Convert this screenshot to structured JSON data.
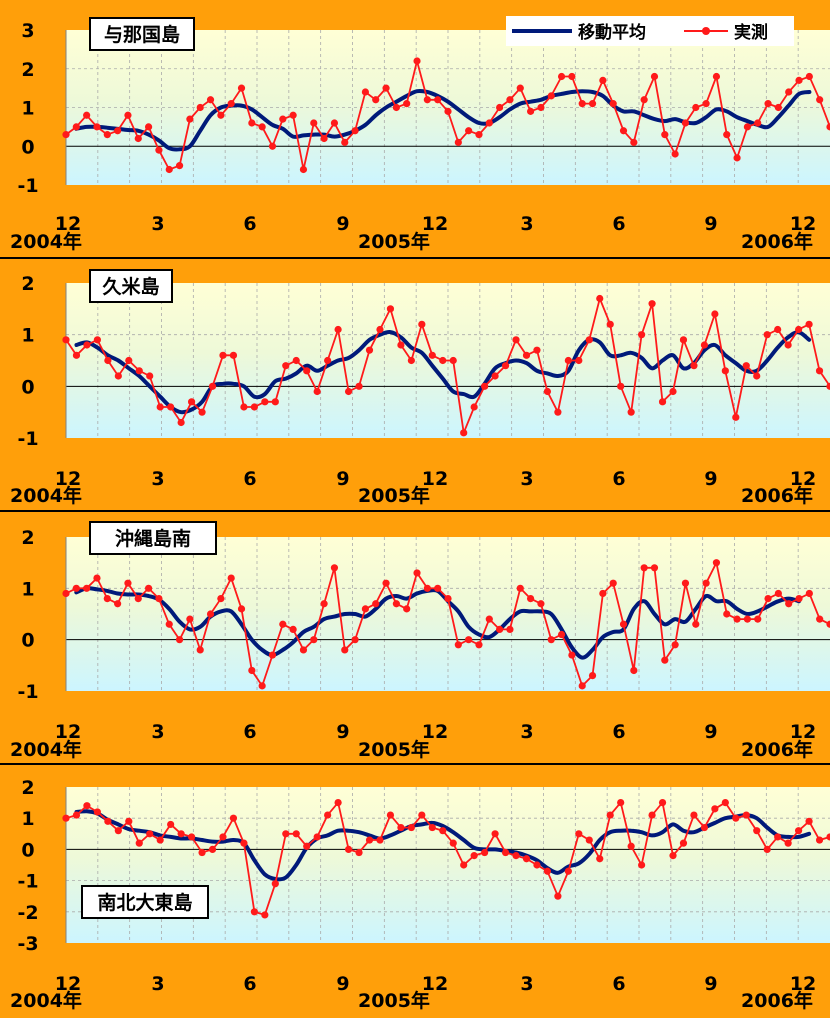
{
  "legend": {
    "ma_label": "移動平均",
    "obs_label": "実測",
    "ma_color": "#001a7a",
    "obs_color": "#ff1a1a"
  },
  "chart_data": [
    {
      "type": "line",
      "title": "与那国島",
      "ylim": [
        -1,
        3
      ],
      "yticks": [
        -1,
        0,
        1,
        2,
        3
      ],
      "x_tick_labels": [
        "12",
        "3",
        "6",
        "9",
        "12",
        "3",
        "6",
        "9",
        "12"
      ],
      "year_labels": [
        "2004年",
        "2005年",
        "2006年"
      ],
      "series": [
        {
          "name": "実測",
          "values": [
            0.3,
            0.5,
            0.8,
            0.5,
            0.3,
            0.4,
            0.8,
            0.2,
            0.5,
            -0.1,
            -0.6,
            -0.5,
            0.7,
            1.0,
            1.2,
            0.8,
            1.1,
            1.5,
            0.6,
            0.5,
            0.0,
            0.7,
            0.8,
            -0.6,
            0.6,
            0.2,
            0.6,
            0.1,
            0.4,
            1.4,
            1.2,
            1.5,
            1.0,
            1.1,
            2.2,
            1.2,
            1.2,
            0.9,
            0.1,
            0.4,
            0.3,
            0.6,
            1.0,
            1.2,
            1.5,
            0.9,
            1.0,
            1.3,
            1.8,
            1.8,
            1.1,
            1.1,
            1.7,
            1.1,
            0.4,
            0.1,
            1.2,
            1.8,
            0.3,
            -0.2,
            0.6,
            1.0,
            1.1,
            1.8,
            0.3,
            -0.3,
            0.5,
            0.6,
            1.1,
            1.0,
            1.4,
            1.7,
            1.8,
            1.2,
            0.5
          ]
        },
        {
          "name": "移動平均",
          "values": [
            0.45,
            0.5,
            0.5,
            0.48,
            0.45,
            0.42,
            0.4,
            0.3,
            0.15,
            -0.05,
            -0.08,
            0.0,
            0.4,
            0.8,
            1.0,
            1.05,
            1.05,
            0.95,
            0.75,
            0.55,
            0.45,
            0.25,
            0.28,
            0.3,
            0.3,
            0.25,
            0.3,
            0.4,
            0.55,
            0.8,
            1.0,
            1.15,
            1.3,
            1.42,
            1.4,
            1.3,
            1.15,
            0.95,
            0.75,
            0.6,
            0.6,
            0.75,
            0.95,
            1.1,
            1.15,
            1.2,
            1.3,
            1.35,
            1.4,
            1.42,
            1.4,
            1.3,
            1.05,
            0.9,
            0.9,
            0.8,
            0.7,
            0.65,
            0.7,
            0.62,
            0.6,
            0.75,
            0.95,
            0.9,
            0.75,
            0.65,
            0.55,
            0.5,
            0.75,
            1.05,
            1.35,
            1.4
          ]
        }
      ]
    },
    {
      "type": "line",
      "title": "久米島",
      "ylim": [
        -1,
        2
      ],
      "yticks": [
        -1,
        0,
        1,
        2
      ],
      "x_tick_labels": [
        "12",
        "3",
        "6",
        "9",
        "12",
        "3",
        "6",
        "9",
        "12"
      ],
      "year_labels": [
        "2004年",
        "2005年",
        "2006年"
      ],
      "series": [
        {
          "name": "実測",
          "values": [
            0.9,
            0.6,
            0.8,
            0.9,
            0.5,
            0.2,
            0.5,
            0.3,
            0.2,
            -0.4,
            -0.4,
            -0.7,
            -0.3,
            -0.5,
            0.0,
            0.6,
            0.6,
            -0.4,
            -0.4,
            -0.3,
            -0.3,
            0.4,
            0.5,
            0.3,
            -0.1,
            0.5,
            1.1,
            -0.1,
            0.0,
            0.7,
            1.1,
            1.5,
            0.8,
            0.5,
            1.2,
            0.6,
            0.5,
            0.5,
            -0.9,
            -0.4,
            0.0,
            0.2,
            0.4,
            0.9,
            0.6,
            0.7,
            -0.1,
            -0.5,
            0.5,
            0.5,
            0.9,
            1.7,
            1.2,
            0.0,
            -0.5,
            1.0,
            1.6,
            -0.3,
            -0.1,
            0.9,
            0.4,
            0.8,
            1.4,
            0.3,
            -0.6,
            0.4,
            0.2,
            1.0,
            1.1,
            0.8,
            1.1,
            1.2,
            0.3,
            0.0
          ]
        },
        {
          "name": "移動平均",
          "values": [
            0.8,
            0.85,
            0.75,
            0.6,
            0.5,
            0.35,
            0.2,
            0.0,
            -0.2,
            -0.4,
            -0.5,
            -0.45,
            -0.3,
            0.0,
            0.05,
            0.05,
            0.0,
            -0.2,
            -0.15,
            0.1,
            0.15,
            0.25,
            0.4,
            0.3,
            0.4,
            0.5,
            0.55,
            0.7,
            0.9,
            1.0,
            1.05,
            0.95,
            0.75,
            0.65,
            0.4,
            0.15,
            -0.1,
            -0.15,
            -0.2,
            0.05,
            0.35,
            0.45,
            0.5,
            0.45,
            0.3,
            0.25,
            0.2,
            0.3,
            0.7,
            0.9,
            0.85,
            0.6,
            0.6,
            0.65,
            0.55,
            0.35,
            0.5,
            0.6,
            0.35,
            0.45,
            0.7,
            0.8,
            0.6,
            0.45,
            0.3,
            0.3,
            0.5,
            0.75,
            0.95,
            1.05,
            0.9
          ]
        }
      ]
    },
    {
      "type": "line",
      "title": "沖縄島南",
      "ylim": [
        -1,
        2
      ],
      "yticks": [
        -1,
        0,
        1,
        2
      ],
      "x_tick_labels": [
        "12",
        "3",
        "6",
        "9",
        "12",
        "3",
        "6",
        "9",
        "12"
      ],
      "year_labels": [
        "2004年",
        "2005年",
        "2006年"
      ],
      "series": [
        {
          "name": "実測",
          "values": [
            0.9,
            1.0,
            1.0,
            1.2,
            0.8,
            0.7,
            1.1,
            0.8,
            1.0,
            0.8,
            0.3,
            0.0,
            0.4,
            -0.2,
            0.5,
            0.8,
            1.2,
            0.6,
            -0.6,
            -0.9,
            -0.3,
            0.3,
            0.2,
            -0.2,
            0.0,
            0.7,
            1.4,
            -0.2,
            0.0,
            0.6,
            0.7,
            1.1,
            0.7,
            0.6,
            1.3,
            1.0,
            1.0,
            0.8,
            -0.1,
            0.0,
            -0.1,
            0.4,
            0.2,
            0.2,
            1.0,
            0.8,
            0.7,
            0.0,
            0.1,
            -0.3,
            -0.9,
            -0.7,
            0.9,
            1.1,
            0.3,
            -0.6,
            1.4,
            1.4,
            -0.4,
            -0.1,
            1.1,
            0.3,
            1.1,
            1.5,
            0.5,
            0.4,
            0.4,
            0.4,
            0.8,
            0.9,
            0.7,
            0.8,
            0.9,
            0.4,
            0.3
          ]
        },
        {
          "name": "移動平均",
          "values": [
            0.92,
            1.0,
            0.98,
            0.95,
            0.9,
            0.88,
            0.88,
            0.85,
            0.78,
            0.6,
            0.35,
            0.2,
            0.25,
            0.45,
            0.55,
            0.55,
            0.3,
            0.0,
            -0.2,
            -0.3,
            -0.2,
            -0.05,
            0.15,
            0.25,
            0.4,
            0.45,
            0.5,
            0.5,
            0.45,
            0.6,
            0.8,
            0.85,
            0.8,
            0.9,
            0.95,
            0.95,
            0.75,
            0.55,
            0.25,
            0.1,
            0.05,
            0.2,
            0.4,
            0.55,
            0.55,
            0.55,
            0.5,
            0.2,
            -0.15,
            -0.35,
            -0.2,
            0.05,
            0.15,
            0.2,
            0.6,
            0.75,
            0.5,
            0.3,
            0.4,
            0.35,
            0.6,
            0.85,
            0.75,
            0.75,
            0.6,
            0.5,
            0.55,
            0.65,
            0.75,
            0.8,
            0.75
          ]
        }
      ]
    },
    {
      "type": "line",
      "title": "南北大東島",
      "ylim": [
        -3,
        2
      ],
      "yticks": [
        -3,
        -2,
        -1,
        0,
        1,
        2
      ],
      "x_tick_labels": [
        "12",
        "3",
        "6",
        "9",
        "12",
        "3",
        "6",
        "9",
        "12"
      ],
      "year_labels": [
        "2004年",
        "2005年",
        "2006年"
      ],
      "series": [
        {
          "name": "実測",
          "values": [
            1.0,
            1.1,
            1.4,
            1.2,
            0.9,
            0.6,
            0.9,
            0.2,
            0.5,
            0.3,
            0.8,
            0.5,
            0.4,
            -0.1,
            0.0,
            0.4,
            1.0,
            0.2,
            -2.0,
            -2.1,
            -1.1,
            0.5,
            0.5,
            0.1,
            0.4,
            1.1,
            1.5,
            0.0,
            -0.1,
            0.3,
            0.3,
            1.1,
            0.7,
            0.7,
            1.1,
            0.7,
            0.6,
            0.2,
            -0.5,
            -0.2,
            -0.1,
            0.5,
            -0.1,
            -0.2,
            -0.3,
            -0.5,
            -0.7,
            -1.5,
            -0.7,
            0.5,
            0.3,
            -0.3,
            1.1,
            1.5,
            0.1,
            -0.5,
            1.1,
            1.5,
            -0.2,
            0.2,
            1.1,
            0.7,
            1.3,
            1.5,
            1.0,
            1.1,
            0.6,
            0.0,
            0.4,
            0.2,
            0.6,
            0.9,
            0.3,
            0.4
          ]
        },
        {
          "name": "移動平均",
          "values": [
            1.2,
            1.22,
            1.15,
            0.95,
            0.8,
            0.65,
            0.6,
            0.55,
            0.45,
            0.4,
            0.35,
            0.35,
            0.3,
            0.25,
            0.25,
            0.3,
            0.2,
            -0.35,
            -0.8,
            -0.95,
            -0.9,
            -0.5,
            0.05,
            0.35,
            0.45,
            0.6,
            0.6,
            0.55,
            0.45,
            0.35,
            0.45,
            0.6,
            0.75,
            0.8,
            0.85,
            0.75,
            0.55,
            0.3,
            0.05,
            0.0,
            0.0,
            -0.05,
            -0.1,
            -0.2,
            -0.35,
            -0.6,
            -0.75,
            -0.55,
            -0.45,
            -0.15,
            0.3,
            0.55,
            0.6,
            0.6,
            0.55,
            0.45,
            0.55,
            0.8,
            0.6,
            0.55,
            0.7,
            0.85,
            1.0,
            1.05,
            1.1,
            1.0,
            0.7,
            0.45,
            0.4,
            0.4,
            0.5
          ]
        }
      ]
    }
  ]
}
